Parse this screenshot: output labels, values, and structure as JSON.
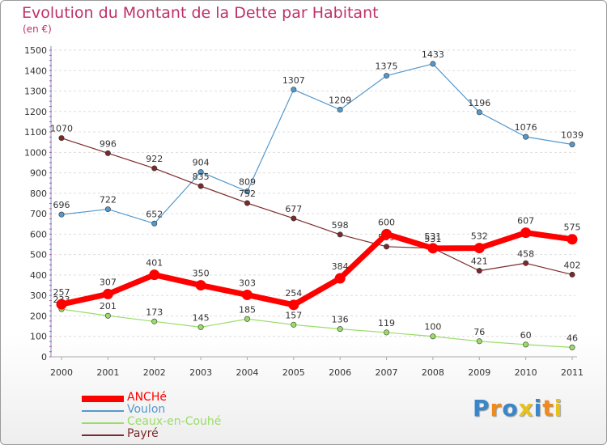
{
  "title": "Evolution du Montant de la Dette par Habitant",
  "unit": "(en €)",
  "logo": {
    "letters": [
      "P",
      "r",
      "o",
      "x",
      "i",
      "t",
      "i"
    ],
    "colors": [
      "#3a86c8",
      "#f08a1c",
      "#3a86c8",
      "#e8c21a",
      "#3a86c8",
      "#f08a1c",
      "#e8c21a"
    ]
  },
  "chart_data": {
    "type": "line",
    "title": "Evolution du Montant de la Dette par Habitant",
    "subtitle": "(en €)",
    "xlabel": "",
    "ylabel": "",
    "x": [
      "2000",
      "2001",
      "2002",
      "2003",
      "2004",
      "2005",
      "2006",
      "2007",
      "2008",
      "2009",
      "2010",
      "2011"
    ],
    "ylim": [
      0,
      1500
    ],
    "yticks": [
      0,
      100,
      200,
      300,
      400,
      500,
      600,
      700,
      800,
      900,
      1000,
      1100,
      1200,
      1300,
      1400,
      1500
    ],
    "grid": true,
    "legend_position": "bottom-left",
    "series": [
      {
        "name": "ANCHé",
        "color": "#ff0000",
        "width": 7,
        "values": [
          257,
          307,
          401,
          350,
          303,
          254,
          384,
          600,
          531,
          532,
          607,
          575
        ]
      },
      {
        "name": "Voulon",
        "color": "#5599cc",
        "width": 1.2,
        "values": [
          696,
          722,
          652,
          904,
          809,
          1307,
          1209,
          1375,
          1433,
          1196,
          1076,
          1039
        ]
      },
      {
        "name": "Ceaux-en-Couhé",
        "color": "#99dd66",
        "width": 1.2,
        "values": [
          233,
          201,
          173,
          145,
          185,
          157,
          136,
          119,
          100,
          76,
          60,
          46
        ]
      },
      {
        "name": "Payré",
        "color": "#7a2a2a",
        "width": 1.2,
        "values": [
          1070,
          996,
          922,
          835,
          752,
          677,
          598,
          539,
          531,
          421,
          458,
          402
        ]
      }
    ]
  }
}
